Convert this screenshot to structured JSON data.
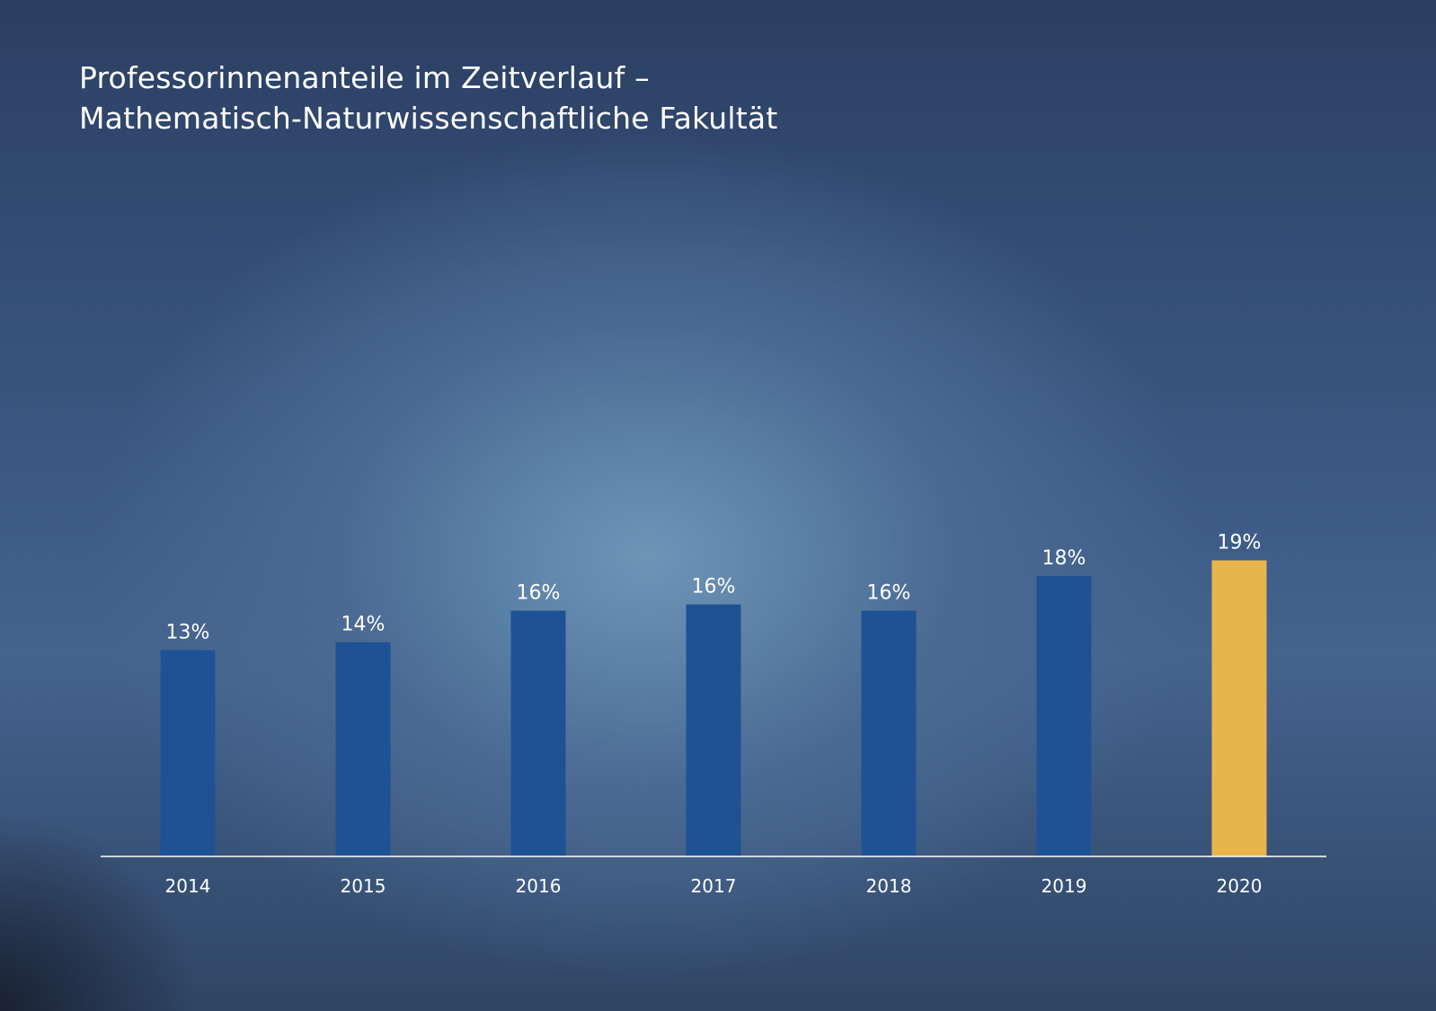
{
  "chart_data": {
    "type": "bar",
    "title": "Professorinnenanteile im Zeitverlauf – Mathematisch-Naturwissenschaftliche Fakultät",
    "title_lines": [
      "Professorinnenanteile im Zeitverlauf –",
      "Mathematisch-Naturwissenschaftliche Fakultät"
    ],
    "categories": [
      "2014",
      "2015",
      "2016",
      "2017",
      "2018",
      "2019",
      "2020"
    ],
    "values": [
      13,
      14,
      16,
      16,
      16,
      18,
      19
    ],
    "precise_values": [
      13.1,
      13.6,
      15.6,
      16.0,
      15.6,
      17.8,
      18.8
    ],
    "data_labels": [
      "13%",
      "14%",
      "16%",
      "16%",
      "16%",
      "18%",
      "19%"
    ],
    "unit": "%",
    "xlabel": "",
    "ylabel": "",
    "ylim": [
      0,
      19
    ],
    "grid": false,
    "legend": "none",
    "colors": {
      "default_bar": "#1f5294",
      "highlight_bar": "#e8b44c",
      "axis_line": "#ffffff",
      "text": "#ffffff"
    },
    "highlight_category": "2020"
  }
}
